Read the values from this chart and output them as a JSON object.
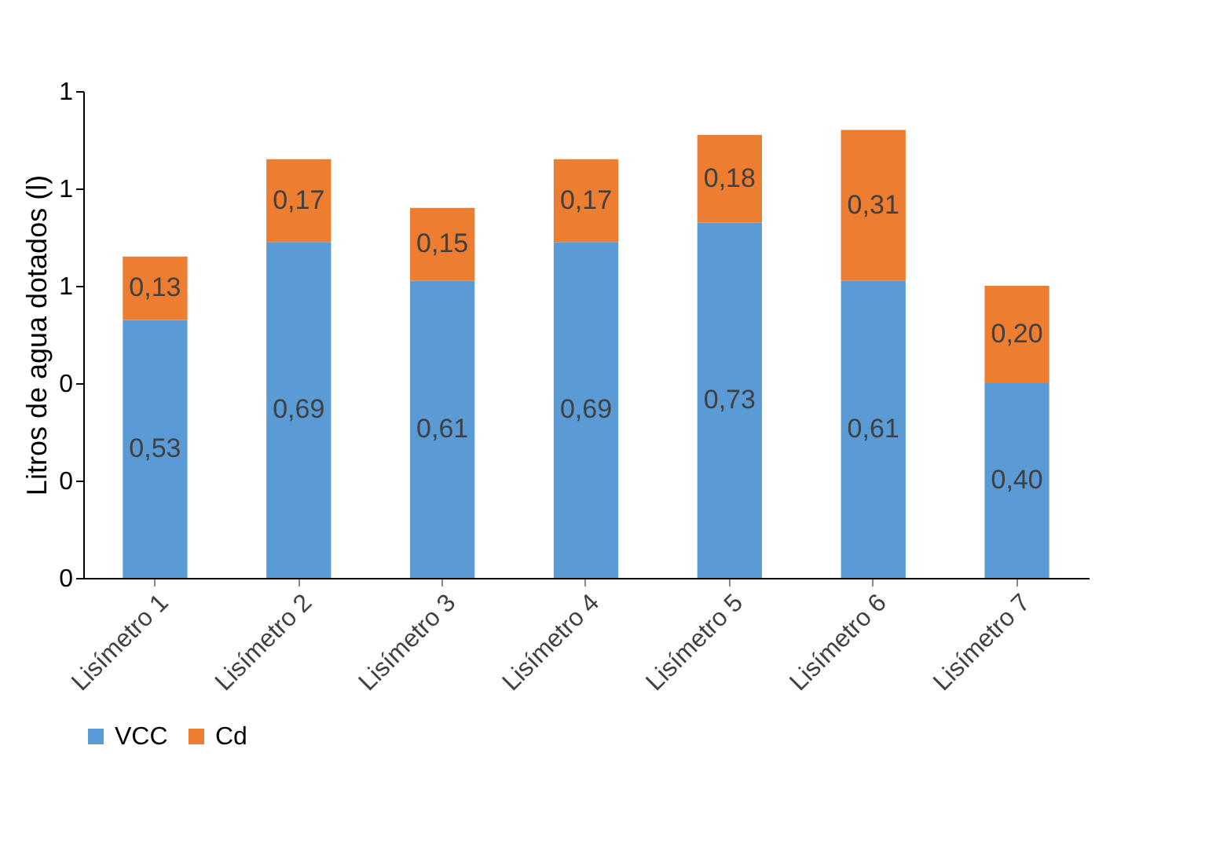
{
  "chart_data": {
    "type": "bar",
    "stacked": true,
    "ylabel": "Litros de agua dotados (l)",
    "categories": [
      "Lisímetro 1",
      "Lisímetro 2",
      "Lisímetro 3",
      "Lisímetro 4",
      "Lisímetro 5",
      "Lisímetro 6",
      "Lisímetro 7"
    ],
    "series": [
      {
        "name": "VCC",
        "color": "#5b9bd5",
        "values": [
          0.53,
          0.69,
          0.61,
          0.69,
          0.73,
          0.61,
          0.4
        ],
        "value_labels": [
          "0,53",
          "0,69",
          "0,61",
          "0,69",
          "0,73",
          "0,61",
          "0,40"
        ]
      },
      {
        "name": "Cd",
        "color": "#ed7d31",
        "values": [
          0.13,
          0.17,
          0.15,
          0.17,
          0.18,
          0.31,
          0.2
        ],
        "value_labels": [
          "0,13",
          "0,17",
          "0,15",
          "0,17",
          "0,18",
          "0,31",
          "0,20"
        ]
      }
    ],
    "ylim": [
      0,
      1
    ],
    "yticks": [
      {
        "value": 0,
        "label": "0"
      },
      {
        "value": 0.2,
        "label": "0"
      },
      {
        "value": 0.4,
        "label": "0"
      },
      {
        "value": 0.6,
        "label": "1"
      },
      {
        "value": 0.8,
        "label": "1"
      },
      {
        "value": 1.0,
        "label": "1"
      }
    ],
    "grid": false,
    "legend": "bottom"
  }
}
